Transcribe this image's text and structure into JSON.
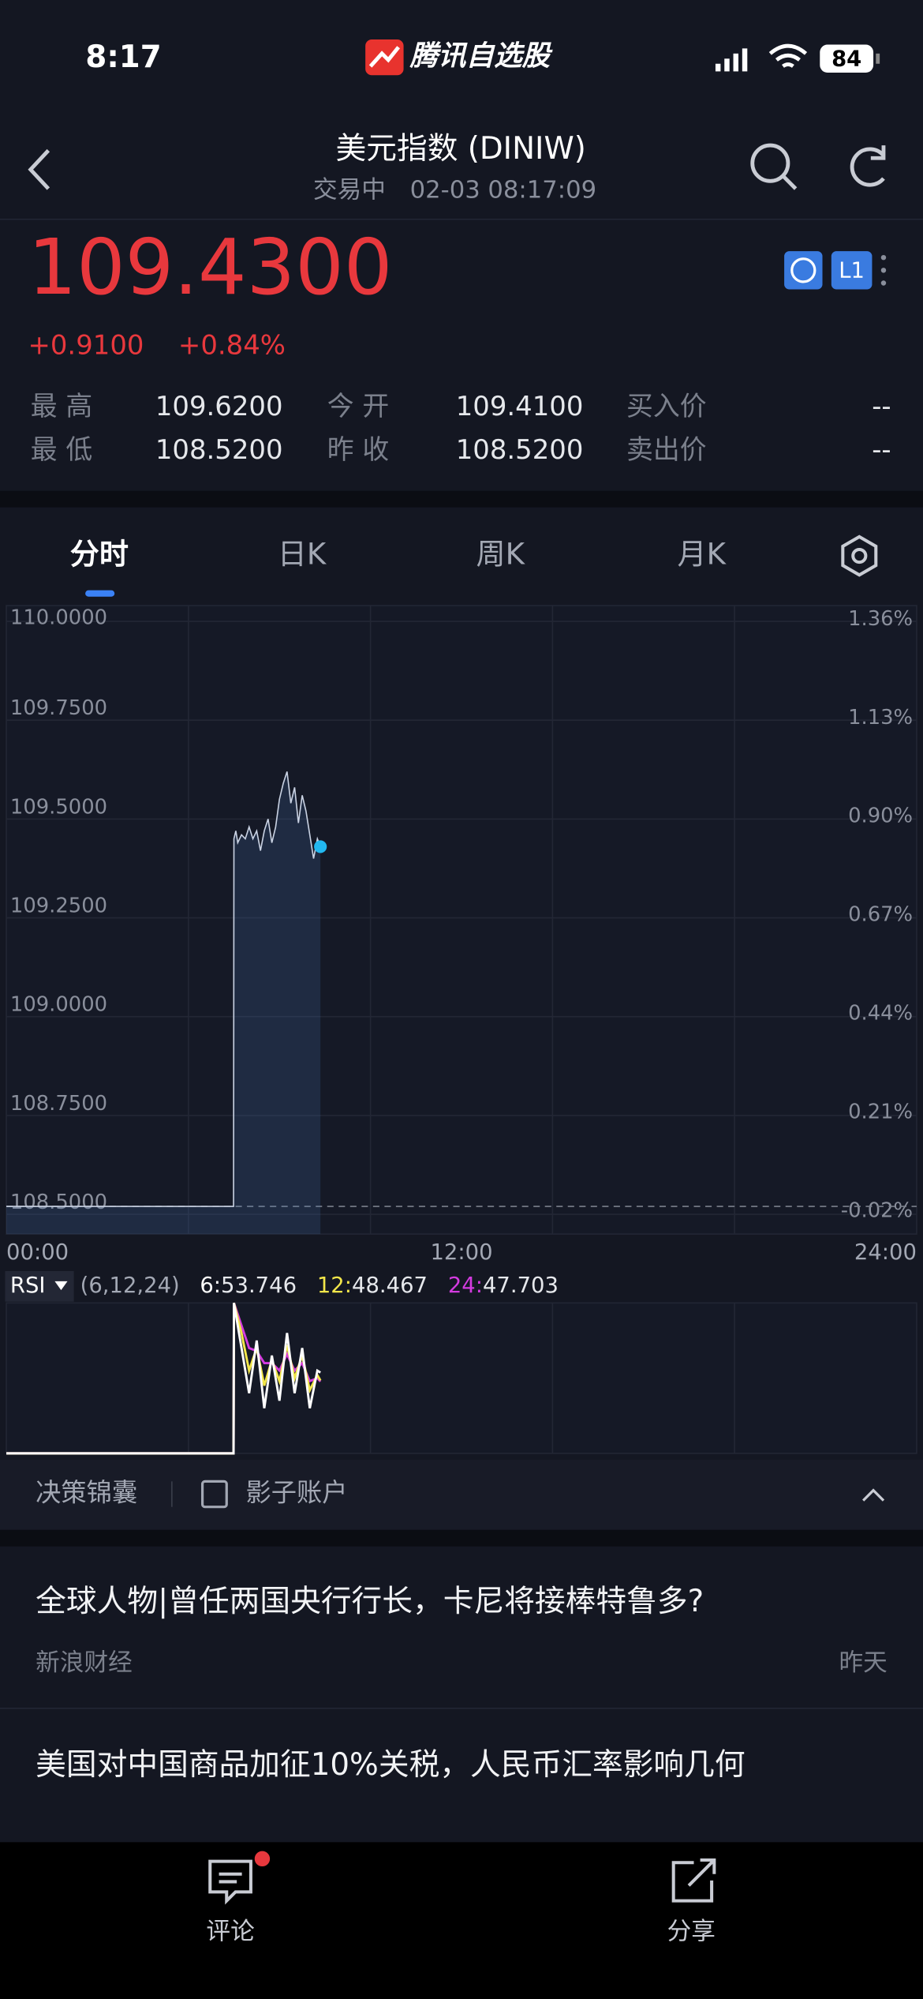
{
  "status_bar": {
    "time": "8:17",
    "app_name": "腾讯自选股",
    "battery": "84"
  },
  "header": {
    "title": "美元指数 (DINIW)",
    "status": "交易中",
    "datetime": "02-03 08:17:09"
  },
  "quote": {
    "price": "109.4300",
    "change": "+0.9100",
    "change_pct": "+0.84%",
    "stats": [
      [
        {
          "label": "最 高",
          "value": "109.6200"
        },
        {
          "label": "今 开",
          "value": "109.4100"
        },
        {
          "label": "买入价",
          "value": "--"
        }
      ],
      [
        {
          "label": "最 低",
          "value": "108.5200"
        },
        {
          "label": "昨 收",
          "value": "108.5200"
        },
        {
          "label": "卖出价",
          "value": "--"
        }
      ]
    ]
  },
  "tabs": [
    "分时",
    "日K",
    "周K",
    "月K"
  ],
  "chart_data": [
    {
      "type": "line",
      "x": [
        0,
        5.99,
        6.0,
        6.05,
        6.1,
        6.2,
        6.3,
        6.4,
        6.5,
        6.6,
        6.7,
        6.8,
        6.9,
        7.0,
        7.1,
        7.2,
        7.3,
        7.4,
        7.5,
        7.6,
        7.7,
        7.8,
        7.9,
        8.0,
        8.1,
        8.2,
        8.28
      ],
      "series": [
        {
          "color": "#c9d2e3",
          "values": [
            108.52,
            108.52,
            109.45,
            109.47,
            109.44,
            109.46,
            109.45,
            109.48,
            109.45,
            109.47,
            109.42,
            109.47,
            109.5,
            109.44,
            109.48,
            109.55,
            109.59,
            109.62,
            109.54,
            109.58,
            109.49,
            109.56,
            109.52,
            109.46,
            109.4,
            109.45,
            109.43
          ]
        }
      ],
      "reference": 108.52,
      "xlim": [
        0,
        24
      ],
      "xticks": [
        {
          "value": 0,
          "label": "00:00"
        },
        {
          "value": 12,
          "label": "12:00"
        },
        {
          "value": 24,
          "label": "24:00"
        }
      ],
      "ylim": [
        108.45,
        110.04
      ],
      "yticks": [
        {
          "value": 110,
          "label": "110.0000"
        },
        {
          "value": 109.75,
          "label": "109.7500"
        },
        {
          "value": 109.5,
          "label": "109.5000"
        },
        {
          "value": 109.25,
          "label": "109.2500"
        },
        {
          "value": 109,
          "label": "109.0000"
        },
        {
          "value": 108.75,
          "label": "108.7500"
        },
        {
          "value": 108.5,
          "label": "108.5000"
        }
      ],
      "y2lim": [
        -0.0645,
        1.4007
      ],
      "y2ticks": [
        {
          "value": 1.36,
          "label": "1.36%"
        },
        {
          "value": 1.13,
          "label": "1.13%"
        },
        {
          "value": 0.9,
          "label": "0.90%"
        },
        {
          "value": 0.67,
          "label": "0.67%"
        },
        {
          "value": 0.44,
          "label": "0.44%"
        },
        {
          "value": 0.21,
          "label": "0.21%"
        },
        {
          "value": -0.02,
          "label": "-0.02%"
        }
      ],
      "grid": true
    },
    {
      "type": "line",
      "title": "RSI",
      "subtitle": "(6,12,24)",
      "x": [
        0,
        5.99,
        6.0,
        6.2,
        6.4,
        6.6,
        6.8,
        7.0,
        7.2,
        7.4,
        7.6,
        7.8,
        8.0,
        8.2,
        8.28
      ],
      "series": [
        {
          "name": "6:",
          "color": "#ffffff",
          "values": [
            0,
            0,
            100,
            70,
            40,
            75,
            30,
            65,
            35,
            80,
            40,
            70,
            30,
            55,
            53.746
          ]
        },
        {
          "name": "12:",
          "color": "#f2e64a",
          "values": [
            0,
            0,
            100,
            80,
            55,
            70,
            45,
            62,
            48,
            72,
            50,
            65,
            42,
            52,
            48.467
          ]
        },
        {
          "name": "24:",
          "color": "#d43be0",
          "values": [
            0,
            0,
            100,
            85,
            70,
            68,
            60,
            60,
            55,
            66,
            55,
            60,
            48,
            50,
            47.703
          ]
        }
      ],
      "xlim": [
        0,
        24
      ],
      "ylim": [
        0,
        100
      ]
    }
  ],
  "toolbar": [
    "决策锦囊",
    "影子账户"
  ],
  "news": [
    {
      "title": "全球人物|曾任两国央行行长，卡尼将接棒特鲁多?",
      "source": "新浪财经",
      "time": "昨天"
    },
    {
      "title": "美国对中国商品加征10%关税，人民币汇率影响几何"
    }
  ],
  "bottom_nav": [
    "评论",
    "分享"
  ]
}
